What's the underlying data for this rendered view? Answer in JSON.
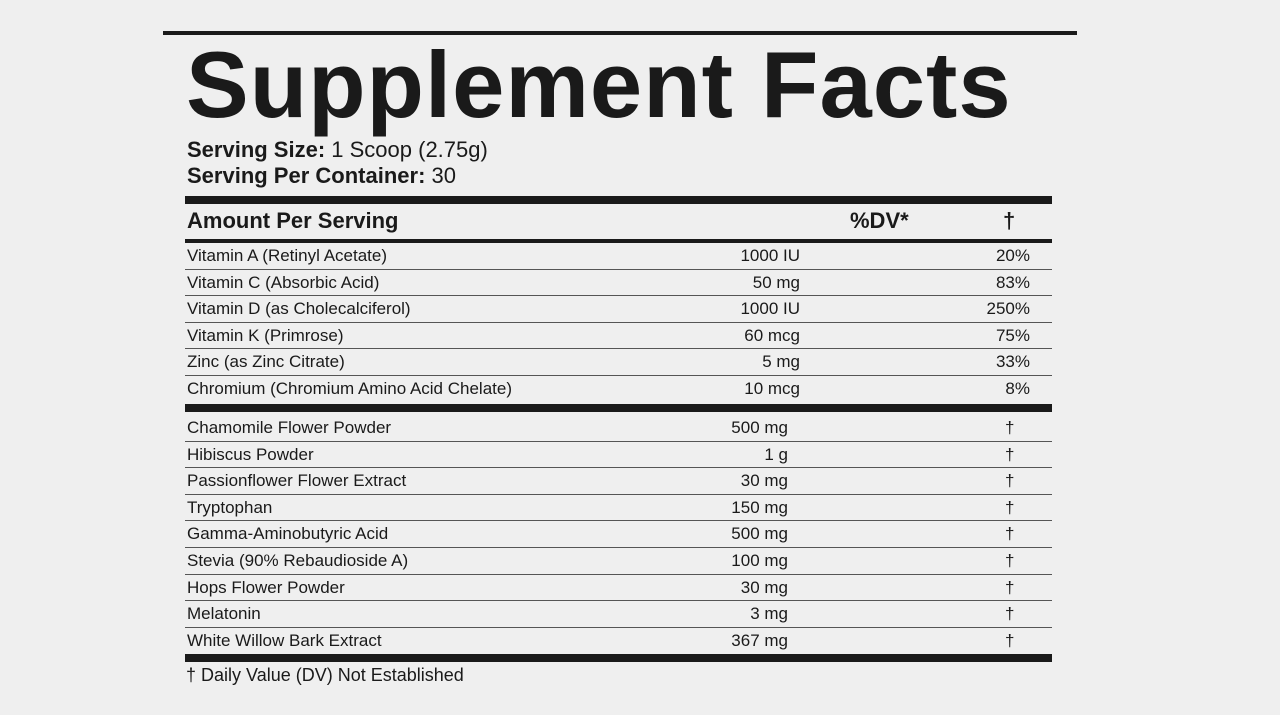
{
  "header": {
    "title": "Supplement Facts",
    "serving_size_label": "Serving Size:",
    "serving_size": "1 Scoop (2.75g)",
    "servings_label": "Serving Per Container:",
    "servings": "30"
  },
  "table": {
    "columns": [
      "Amount Per Serving",
      "%DV*",
      "†"
    ],
    "vitamins": [
      [
        "Vitamin A (Retinyl Acetate)",
        "1000 IU",
        "20%"
      ],
      [
        "Vitamin C (Absorbic Acid)",
        "50 mg",
        "83%"
      ],
      [
        "Vitamin D (as Cholecalciferol)",
        "1000 IU",
        "250%"
      ],
      [
        "Vitamin K (Primrose)",
        "60 mcg",
        "75%"
      ],
      [
        "Zinc (as Zinc Citrate)",
        "5 mg",
        "33%"
      ],
      [
        "Chromium (Chromium Amino Acid Chelate)",
        "10 mcg",
        "8%"
      ]
    ],
    "botanicals": [
      [
        "Chamomile Flower Powder",
        "500 mg",
        "†"
      ],
      [
        "Hibiscus Powder",
        "1 g",
        "†"
      ],
      [
        "Passionflower Flower Extract",
        "30 mg",
        "†"
      ],
      [
        "Tryptophan",
        "150 mg",
        "†"
      ],
      [
        "Gamma-Aminobutyric Acid",
        "500 mg",
        "†"
      ],
      [
        "Stevia (90% Rebaudioside A)",
        "100 mg",
        "†"
      ],
      [
        "Hops Flower Powder",
        "30 mg",
        "†"
      ],
      [
        "Melatonin",
        "3 mg",
        "†"
      ],
      [
        "White Willow Bark Extract",
        "367 mg",
        "†"
      ]
    ]
  },
  "footnote": "† Daily Value (DV) Not Established"
}
